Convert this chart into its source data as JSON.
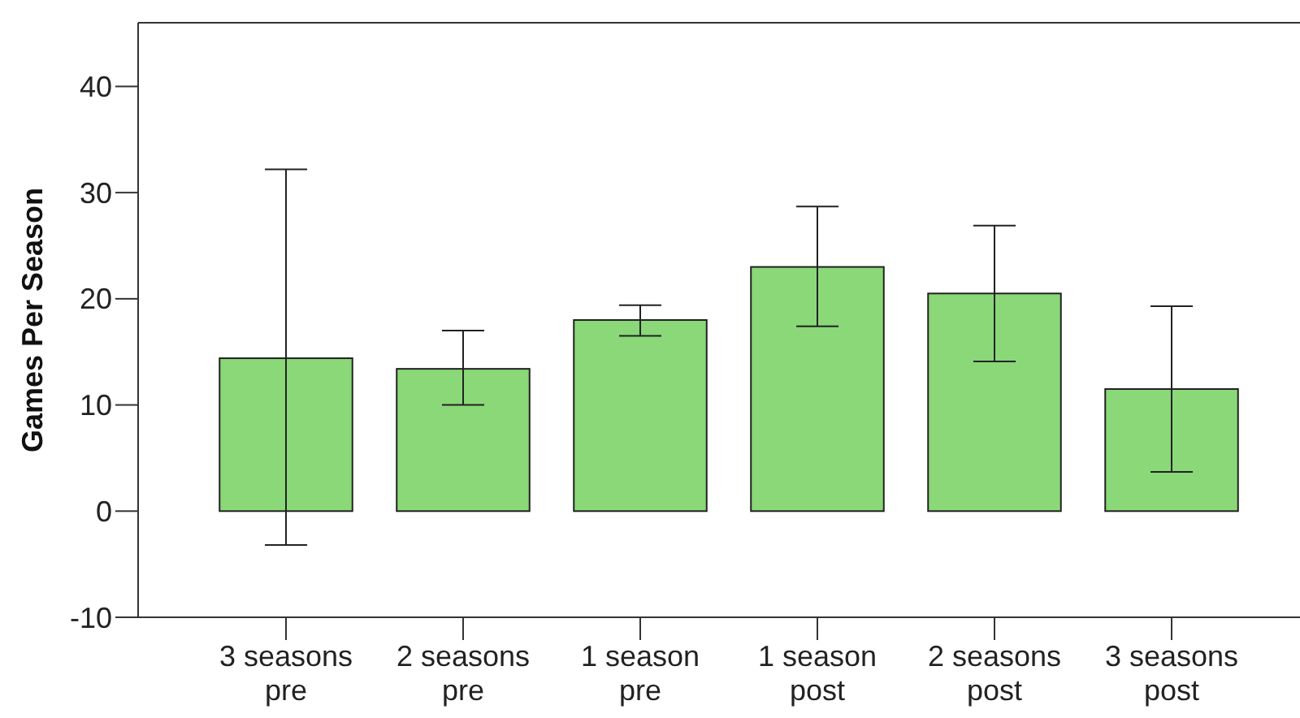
{
  "chart_data": {
    "type": "bar",
    "ylabel": "Games Per Season",
    "categories": [
      "3 seasons\npre",
      "2 seasons\npre",
      "1 season\npre",
      "1 season\npost",
      "2 seasons\npost",
      "3 seasons\npost"
    ],
    "values": [
      14.4,
      13.4,
      18.0,
      23.0,
      20.5,
      11.5
    ],
    "errors": [
      [
        -3.2,
        32.2
      ],
      [
        10.0,
        17.0
      ],
      [
        16.5,
        19.4
      ],
      [
        17.4,
        28.7
      ],
      [
        14.1,
        26.9
      ],
      [
        3.7,
        19.3
      ]
    ],
    "color": "#8ad878",
    "ylim": [
      -10,
      46
    ],
    "yticks": [
      -10,
      0,
      10,
      20,
      30,
      40
    ],
    "grid": false
  }
}
